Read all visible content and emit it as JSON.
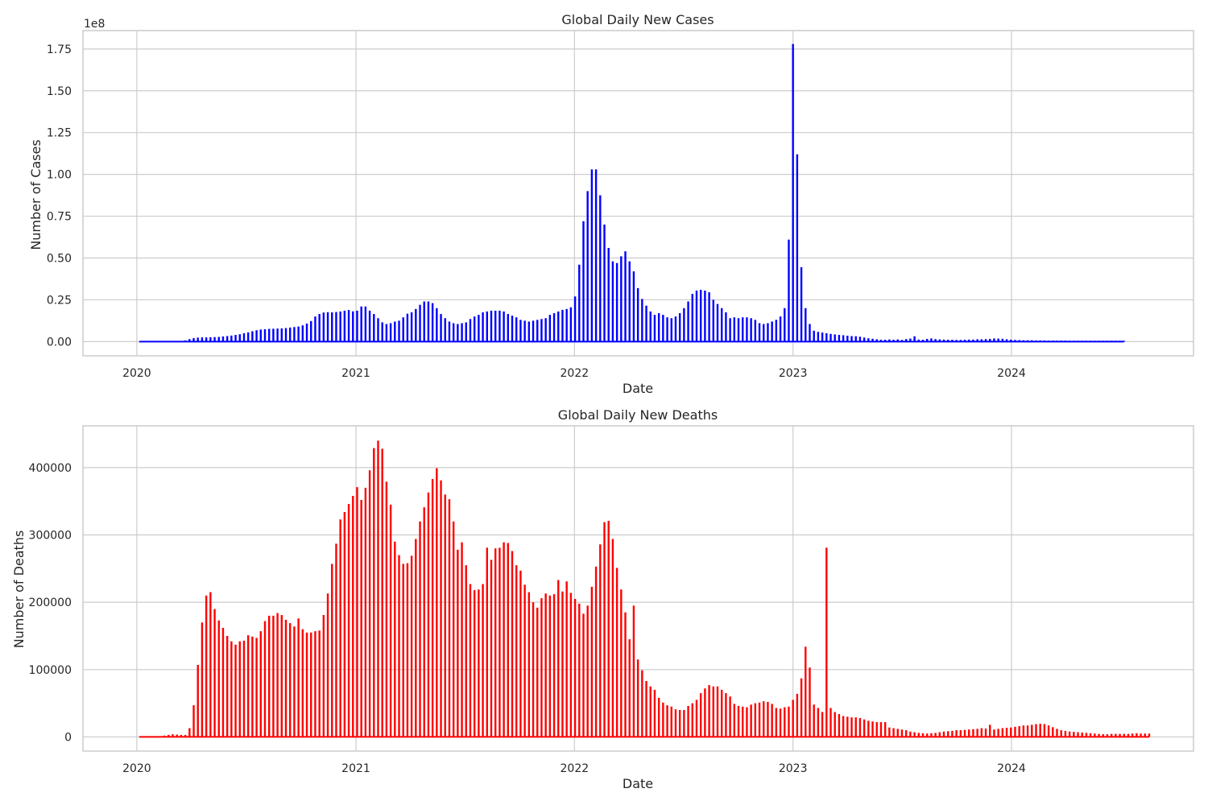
{
  "colors": {
    "cases": "#0000ff",
    "deaths": "#ff0000",
    "grid": "#cccccc",
    "frame": "#cccccc",
    "text": "#262626",
    "background": "#ffffff"
  },
  "chart_data": [
    {
      "type": "bar",
      "title": "Global Daily New Cases",
      "xlabel": "Date",
      "ylabel": "Number of Cases",
      "y_offset_label": "1e8",
      "x_ticks": [
        "2020",
        "2021",
        "2022",
        "2023",
        "2024"
      ],
      "y_ticks": [
        "0.00",
        "0.25",
        "0.50",
        "0.75",
        "1.00",
        "1.25",
        "1.50",
        "1.75"
      ],
      "x_range": [
        "2019-10-03",
        "2024-10-31"
      ],
      "ylim": [
        -8500000,
        186000000
      ],
      "grid": true,
      "series": [
        {
          "color": "#0000ff",
          "start_date": "2020-01-05",
          "interval_days": 7,
          "values": [
            0,
            0,
            0,
            0,
            0,
            0,
            0,
            0,
            0,
            0,
            200000,
            700000,
            1500000,
            2100000,
            2400000,
            2500000,
            2500000,
            2600000,
            2700000,
            2800000,
            3100000,
            3300000,
            3600000,
            4000000,
            4400000,
            5000000,
            5500000,
            6200000,
            6800000,
            7200000,
            7400000,
            7600000,
            7700000,
            7800000,
            7900000,
            8100000,
            8400000,
            8700000,
            9000000,
            9700000,
            10800000,
            12300000,
            15000000,
            16500000,
            17400000,
            17600000,
            17500000,
            17700000,
            18000000,
            18500000,
            18900000,
            18100000,
            18500000,
            21000000,
            21000000,
            18500000,
            16500000,
            14000000,
            11500000,
            10500000,
            11000000,
            12000000,
            12500000,
            14500000,
            16700000,
            17500000,
            19500000,
            22000000,
            24000000,
            24000000,
            23000000,
            20000000,
            16500000,
            14000000,
            12000000,
            11000000,
            10500000,
            11000000,
            11500000,
            13500000,
            15000000,
            16000000,
            17500000,
            18000000,
            18500000,
            18500000,
            18500000,
            18000000,
            16500000,
            15500000,
            14500000,
            13000000,
            12500000,
            12000000,
            12500000,
            13000000,
            13500000,
            14000000,
            16000000,
            17000000,
            18000000,
            19000000,
            19500000,
            20500000,
            27000000,
            46000000,
            72000000,
            90000000,
            103000000,
            103000000,
            87500000,
            70000000,
            56000000,
            48000000,
            47000000,
            51000000,
            54000000,
            48000000,
            42000000,
            32000000,
            25500000,
            21500000,
            18000000,
            16000000,
            17000000,
            16000000,
            14500000,
            14000000,
            15000000,
            17000000,
            20000000,
            24000000,
            28500000,
            30500000,
            31000000,
            30500000,
            29500000,
            25000000,
            22500000,
            20000000,
            17500000,
            14000000,
            14500000,
            14000000,
            14500000,
            14500000,
            14000000,
            13000000,
            11000000,
            10500000,
            11000000,
            12000000,
            13000000,
            15000000,
            20000000,
            61000000,
            178000000,
            112000000,
            44500000,
            20000000,
            10500000,
            6500000,
            5800000,
            5400000,
            5000000,
            4600000,
            4300000,
            4000000,
            3800000,
            3500000,
            3300000,
            3200000,
            2900000,
            2400000,
            2000000,
            1700000,
            1400000,
            1100000,
            1100000,
            1300000,
            1100000,
            1300000,
            1000000,
            1500000,
            1800000,
            3200000,
            1200000,
            1100000,
            1600000,
            1900000,
            1500000,
            1300000,
            1200000,
            1100000,
            1100000,
            1000000,
            1000000,
            1100000,
            1200000,
            1200000,
            1400000,
            1400000,
            1500000,
            1600000,
            1900000,
            1800000,
            1700000,
            1400000,
            1200000,
            1000000,
            900000,
            800000,
            800000,
            800000,
            700000,
            700000,
            700000,
            600000,
            600000,
            600000,
            600000,
            600000,
            500000,
            500000,
            500000,
            500000,
            500000,
            500000,
            500000,
            500000,
            500000,
            500000,
            500000,
            500000,
            500000,
            500000
          ]
        }
      ]
    },
    {
      "type": "bar",
      "title": "Global Daily New Deaths",
      "xlabel": "Date",
      "ylabel": "Number of Deaths",
      "x_ticks": [
        "2020",
        "2021",
        "2022",
        "2023",
        "2024"
      ],
      "y_ticks": [
        "0",
        "100000",
        "200000",
        "300000",
        "400000"
      ],
      "x_range": [
        "2019-10-03",
        "2024-10-31"
      ],
      "ylim": [
        -21000,
        462000
      ],
      "grid": true,
      "series": [
        {
          "color": "#ff0000",
          "start_date": "2020-01-05",
          "interval_days": 7,
          "values": [
            0,
            0,
            0,
            0,
            0,
            1000,
            2000,
            3000,
            4000,
            3500,
            3000,
            3000,
            13000,
            47000,
            107000,
            170000,
            210000,
            215000,
            190000,
            173000,
            162000,
            150000,
            142000,
            137000,
            142000,
            143000,
            151000,
            149000,
            147000,
            157000,
            172000,
            180000,
            180000,
            184000,
            181000,
            174000,
            169000,
            164000,
            176000,
            160000,
            155000,
            155000,
            157000,
            158000,
            181000,
            213000,
            257000,
            287000,
            323000,
            334000,
            346000,
            358000,
            371000,
            352000,
            370000,
            396000,
            429000,
            440000,
            428000,
            379000,
            345000,
            290000,
            270000,
            257000,
            258000,
            269000,
            294000,
            320000,
            341000,
            363000,
            383000,
            399000,
            381000,
            360000,
            353000,
            320000,
            278000,
            289000,
            255000,
            227000,
            218000,
            219000,
            227000,
            281000,
            263000,
            280000,
            281000,
            289000,
            288000,
            276000,
            255000,
            247000,
            226000,
            215000,
            200000,
            192000,
            206000,
            213000,
            210000,
            212000,
            233000,
            216000,
            231000,
            214000,
            205000,
            198000,
            183000,
            195000,
            223000,
            253000,
            286000,
            319000,
            321000,
            294000,
            251000,
            219000,
            185000,
            145000,
            195000,
            115000,
            99000,
            83000,
            75000,
            70000,
            58000,
            51000,
            47000,
            45000,
            41000,
            40000,
            40000,
            46000,
            50000,
            55000,
            65000,
            72000,
            77000,
            75000,
            75000,
            70000,
            65000,
            60000,
            49000,
            46000,
            45000,
            44000,
            48000,
            50000,
            51000,
            53000,
            52000,
            49000,
            43000,
            42000,
            44000,
            45000,
            55000,
            64000,
            87000,
            134000,
            103000,
            48000,
            43000,
            37000,
            281000,
            43000,
            37000,
            34000,
            31000,
            30000,
            29000,
            29000,
            28000,
            26000,
            24000,
            23000,
            22000,
            22000,
            22000,
            14000,
            13000,
            12000,
            11000,
            10000,
            8000,
            7000,
            6000,
            5500,
            5000,
            5500,
            6000,
            7000,
            8000,
            8500,
            9000,
            10000,
            10000,
            10500,
            11000,
            11500,
            12000,
            13000,
            12500,
            18000,
            11000,
            12000,
            13000,
            13500,
            14000,
            15000,
            16000,
            17000,
            17000,
            18000,
            19000,
            19500,
            19000,
            17000,
            14500,
            12000,
            10000,
            9000,
            8000,
            7500,
            7000,
            6500,
            6000,
            5500,
            5000,
            4500,
            4000,
            4000,
            4500,
            4500,
            4500,
            4500,
            4500,
            5000,
            5500,
            5000,
            5000,
            5000
          ]
        }
      ]
    }
  ]
}
